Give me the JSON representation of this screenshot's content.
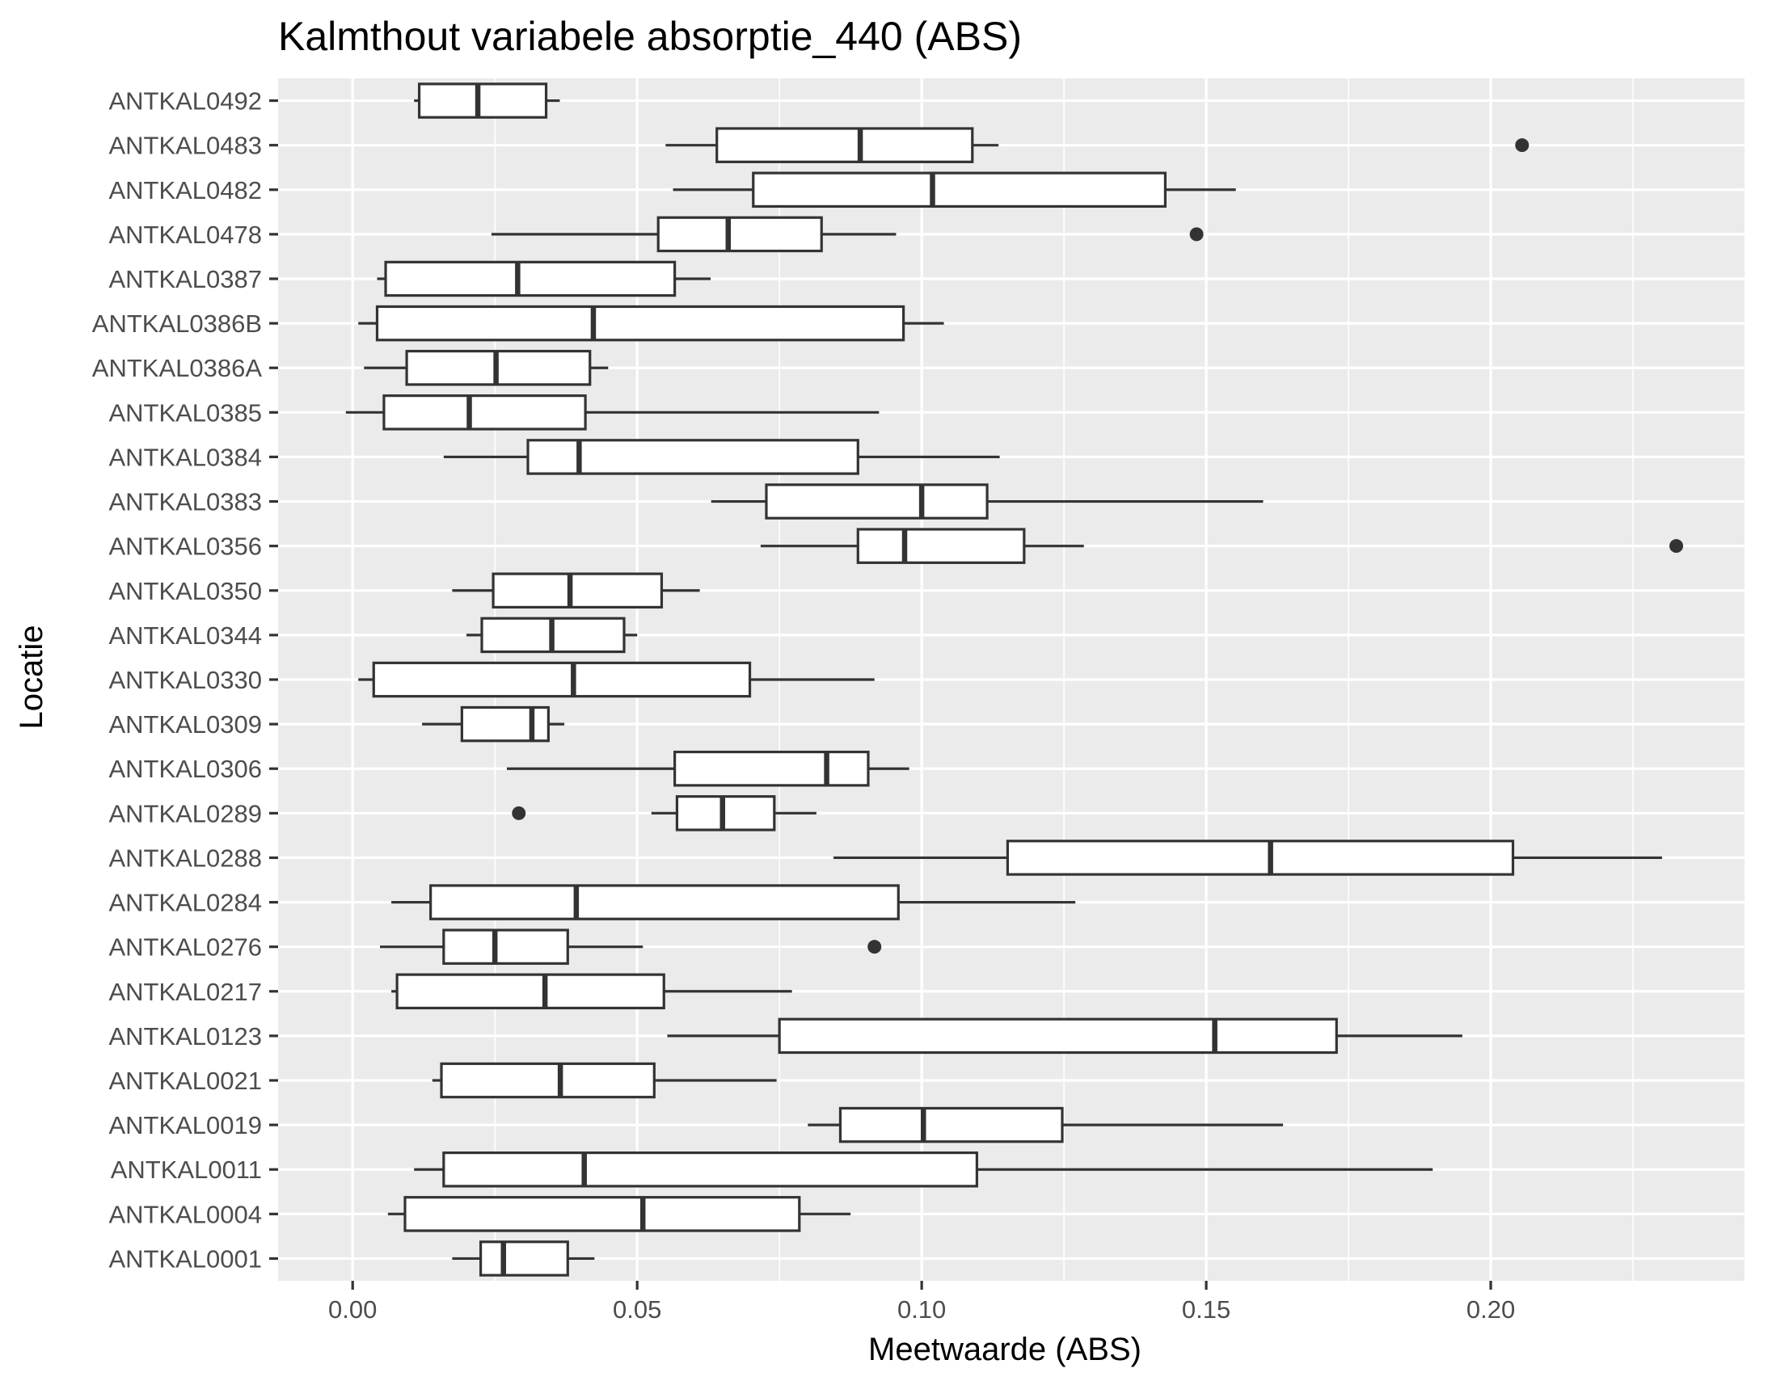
{
  "chart_data": {
    "type": "boxplot",
    "orientation": "horizontal",
    "title": "Kalmthout variabele absorptie_440 (ABS)",
    "xlabel": "Meetwaarde (ABS)",
    "ylabel": "Locatie",
    "xlim": [
      -0.0131,
      0.2446
    ],
    "x_ticks": [
      {
        "value": 0.0,
        "label": "0.00"
      },
      {
        "value": 0.05,
        "label": "0.05"
      },
      {
        "value": 0.1,
        "label": "0.10"
      },
      {
        "value": 0.15,
        "label": "0.15"
      },
      {
        "value": 0.2,
        "label": "0.20"
      }
    ],
    "x_minor_ticks": [
      0.025,
      0.075,
      0.125,
      0.175,
      0.225
    ],
    "grid": true,
    "colors": {
      "panel": "#ebebeb",
      "grid": "#ffffff",
      "box_fill": "#ffffff",
      "box_line": "#333333",
      "outlier": "#333333",
      "tick_label": "#4d4d4d",
      "axis_title": "#000000"
    },
    "categories": [
      "ANTKAL0492",
      "ANTKAL0483",
      "ANTKAL0482",
      "ANTKAL0478",
      "ANTKAL0387",
      "ANTKAL0386B",
      "ANTKAL0386A",
      "ANTKAL0385",
      "ANTKAL0384",
      "ANTKAL0383",
      "ANTKAL0356",
      "ANTKAL0350",
      "ANTKAL0344",
      "ANTKAL0330",
      "ANTKAL0309",
      "ANTKAL0306",
      "ANTKAL0289",
      "ANTKAL0288",
      "ANTKAL0284",
      "ANTKAL0276",
      "ANTKAL0217",
      "ANTKAL0123",
      "ANTKAL0021",
      "ANTKAL0019",
      "ANTKAL0011",
      "ANTKAL0004",
      "ANTKAL0001"
    ],
    "boxes": [
      {
        "label": "ANTKAL0492",
        "whisker_low": 0.0108,
        "q1": 0.0117,
        "median": 0.022,
        "q3": 0.034,
        "whisker_high": 0.0364,
        "outliers": []
      },
      {
        "label": "ANTKAL0483",
        "whisker_low": 0.055,
        "q1": 0.064,
        "median": 0.0892,
        "q3": 0.1089,
        "whisker_high": 0.1135,
        "outliers": [
          0.2055
        ]
      },
      {
        "label": "ANTKAL0482",
        "whisker_low": 0.0563,
        "q1": 0.0704,
        "median": 0.1019,
        "q3": 0.1428,
        "whisker_high": 0.1552,
        "outliers": []
      },
      {
        "label": "ANTKAL0478",
        "whisker_low": 0.0244,
        "q1": 0.0537,
        "median": 0.066,
        "q3": 0.0824,
        "whisker_high": 0.0955,
        "outliers": [
          0.1483
        ]
      },
      {
        "label": "ANTKAL0387",
        "whisker_low": 0.0043,
        "q1": 0.0058,
        "median": 0.029,
        "q3": 0.0566,
        "whisker_high": 0.0629,
        "outliers": []
      },
      {
        "label": "ANTKAL0386B",
        "whisker_low": 0.001,
        "q1": 0.0043,
        "median": 0.0423,
        "q3": 0.0968,
        "whisker_high": 0.1039,
        "outliers": []
      },
      {
        "label": "ANTKAL0386A",
        "whisker_low": 0.002,
        "q1": 0.0095,
        "median": 0.0252,
        "q3": 0.0417,
        "whisker_high": 0.0449,
        "outliers": []
      },
      {
        "label": "ANTKAL0385",
        "whisker_low": -0.0012,
        "q1": 0.0055,
        "median": 0.0205,
        "q3": 0.0409,
        "whisker_high": 0.0925,
        "outliers": []
      },
      {
        "label": "ANTKAL0384",
        "whisker_low": 0.016,
        "q1": 0.0308,
        "median": 0.0398,
        "q3": 0.0888,
        "whisker_high": 0.1137,
        "outliers": []
      },
      {
        "label": "ANTKAL0383",
        "whisker_low": 0.063,
        "q1": 0.0727,
        "median": 0.1,
        "q3": 0.1115,
        "whisker_high": 0.16,
        "outliers": []
      },
      {
        "label": "ANTKAL0356",
        "whisker_low": 0.0717,
        "q1": 0.0888,
        "median": 0.097,
        "q3": 0.118,
        "whisker_high": 0.1285,
        "outliers": [
          0.2326
        ]
      },
      {
        "label": "ANTKAL0350",
        "whisker_low": 0.0175,
        "q1": 0.0247,
        "median": 0.0382,
        "q3": 0.0543,
        "whisker_high": 0.061,
        "outliers": []
      },
      {
        "label": "ANTKAL0344",
        "whisker_low": 0.02,
        "q1": 0.0227,
        "median": 0.035,
        "q3": 0.0477,
        "whisker_high": 0.05,
        "outliers": []
      },
      {
        "label": "ANTKAL0330",
        "whisker_low": 0.001,
        "q1": 0.0037,
        "median": 0.0388,
        "q3": 0.0698,
        "whisker_high": 0.0917,
        "outliers": []
      },
      {
        "label": "ANTKAL0309",
        "whisker_low": 0.0122,
        "q1": 0.0192,
        "median": 0.0315,
        "q3": 0.0344,
        "whisker_high": 0.0372,
        "outliers": []
      },
      {
        "label": "ANTKAL0306",
        "whisker_low": 0.0271,
        "q1": 0.0566,
        "median": 0.0833,
        "q3": 0.0906,
        "whisker_high": 0.0978,
        "outliers": []
      },
      {
        "label": "ANTKAL0289",
        "whisker_low": 0.0525,
        "q1": 0.057,
        "median": 0.065,
        "q3": 0.0741,
        "whisker_high": 0.0815,
        "outliers": [
          0.0292
        ]
      },
      {
        "label": "ANTKAL0288",
        "whisker_low": 0.0845,
        "q1": 0.1151,
        "median": 0.1613,
        "q3": 0.2039,
        "whisker_high": 0.2301,
        "outliers": []
      },
      {
        "label": "ANTKAL0284",
        "whisker_low": 0.0068,
        "q1": 0.0137,
        "median": 0.0393,
        "q3": 0.0959,
        "whisker_high": 0.127,
        "outliers": []
      },
      {
        "label": "ANTKAL0276",
        "whisker_low": 0.0048,
        "q1": 0.016,
        "median": 0.025,
        "q3": 0.0378,
        "whisker_high": 0.051,
        "outliers": [
          0.0917
        ]
      },
      {
        "label": "ANTKAL0217",
        "whisker_low": 0.0068,
        "q1": 0.0078,
        "median": 0.0338,
        "q3": 0.0547,
        "whisker_high": 0.0772,
        "outliers": []
      },
      {
        "label": "ANTKAL0123",
        "whisker_low": 0.0553,
        "q1": 0.075,
        "median": 0.1515,
        "q3": 0.1729,
        "whisker_high": 0.195,
        "outliers": []
      },
      {
        "label": "ANTKAL0021",
        "whisker_low": 0.014,
        "q1": 0.0156,
        "median": 0.0365,
        "q3": 0.053,
        "whisker_high": 0.0745,
        "outliers": []
      },
      {
        "label": "ANTKAL0019",
        "whisker_low": 0.08,
        "q1": 0.0857,
        "median": 0.1003,
        "q3": 0.1247,
        "whisker_high": 0.1635,
        "outliers": []
      },
      {
        "label": "ANTKAL0011",
        "whisker_low": 0.0108,
        "q1": 0.016,
        "median": 0.0407,
        "q3": 0.1097,
        "whisker_high": 0.1898,
        "outliers": []
      },
      {
        "label": "ANTKAL0004",
        "whisker_low": 0.0062,
        "q1": 0.0092,
        "median": 0.051,
        "q3": 0.0785,
        "whisker_high": 0.0875,
        "outliers": []
      },
      {
        "label": "ANTKAL0001",
        "whisker_low": 0.0175,
        "q1": 0.0225,
        "median": 0.0265,
        "q3": 0.0378,
        "whisker_high": 0.0425,
        "outliers": []
      }
    ]
  }
}
